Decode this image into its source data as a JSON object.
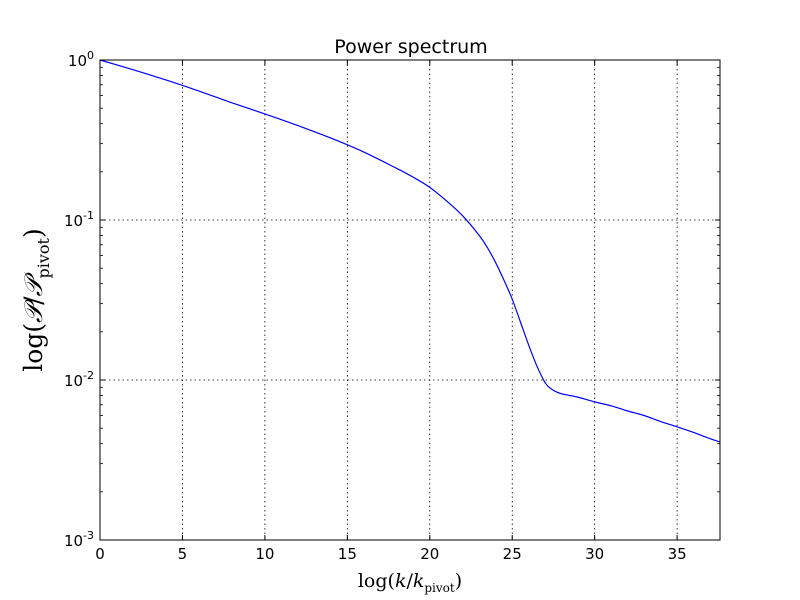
{
  "chart_data": {
    "type": "line",
    "title": "Power spectrum",
    "xlabel": "log(k/k_pivot)",
    "ylabel": "log(P/P_pivot)",
    "xlim": [
      0,
      37.6
    ],
    "ylim": [
      0.001,
      1
    ],
    "yscale": "log",
    "grid": true,
    "line_color": "#0000ff",
    "x_ticks": [
      "0",
      "5",
      "10",
      "15",
      "20",
      "25",
      "30",
      "35"
    ],
    "y_ticks": [
      {
        "base": "10",
        "exp": "0"
      },
      {
        "base": "10",
        "exp": "-1"
      },
      {
        "base": "10",
        "exp": "-2"
      },
      {
        "base": "10",
        "exp": "-3"
      }
    ],
    "series": [
      {
        "x": [
          0,
          2,
          4,
          6,
          8,
          10,
          12,
          14,
          16,
          18,
          19,
          20,
          21,
          22,
          23,
          23.5,
          24,
          24.5,
          25,
          25.5,
          26,
          26.5,
          27,
          27.3,
          27.6,
          28,
          28.5,
          29,
          30,
          31,
          32,
          33,
          34,
          35,
          36,
          37,
          37.6
        ],
        "y": [
          1.0,
          0.87,
          0.75,
          0.64,
          0.54,
          0.46,
          0.389,
          0.325,
          0.266,
          0.21,
          0.185,
          0.16,
          0.132,
          0.106,
          0.08,
          0.067,
          0.054,
          0.042,
          0.032,
          0.023,
          0.0165,
          0.0122,
          0.0096,
          0.0089,
          0.0085,
          0.0082,
          0.008,
          0.0078,
          0.0073,
          0.0069,
          0.0064,
          0.006,
          0.0055,
          0.0051,
          0.0047,
          0.0043,
          0.0041
        ]
      }
    ]
  }
}
